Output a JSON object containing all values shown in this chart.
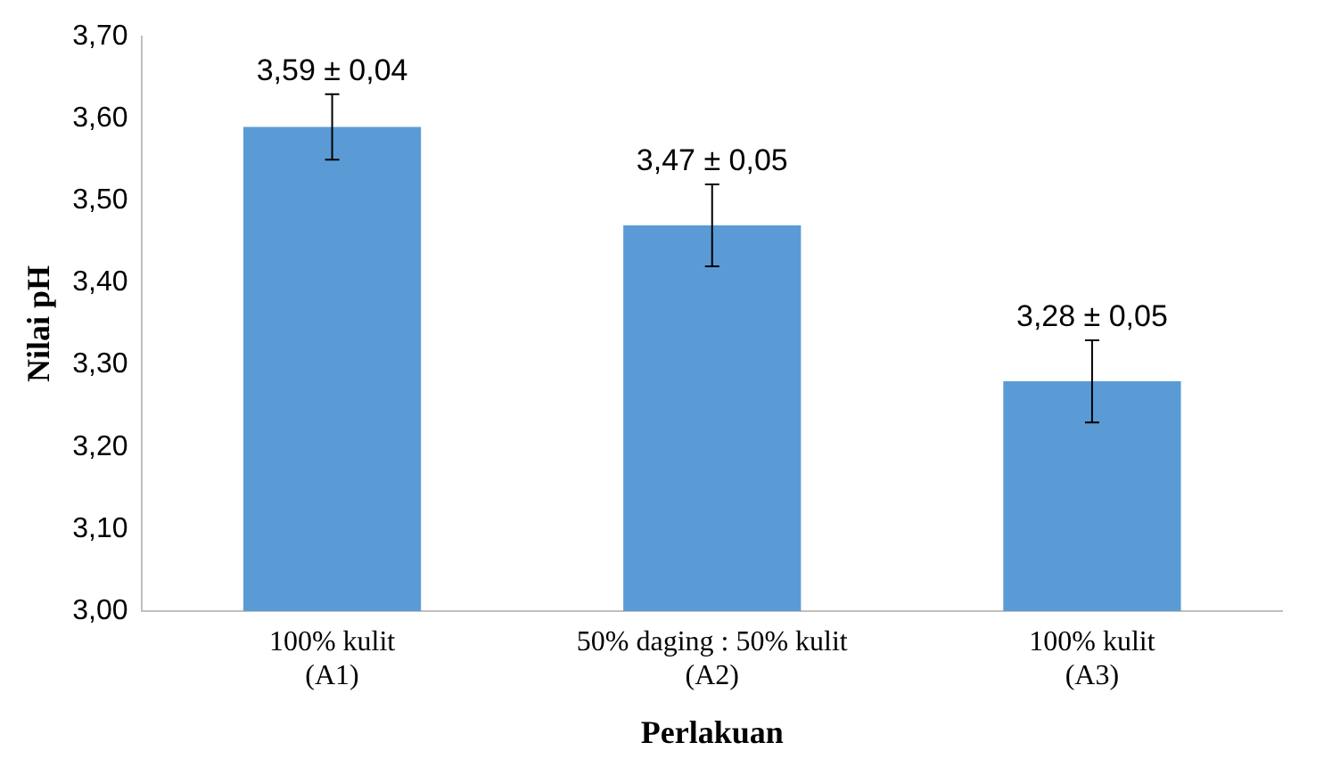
{
  "chart_data": {
    "type": "bar",
    "xlabel": "Perlakuan",
    "ylabel": "Nilai pH",
    "categories": [
      "100% kulit (A1)",
      "50% daging : 50% kulit (A2)",
      "100% kulit (A3)"
    ],
    "values": [
      3.59,
      3.47,
      3.28
    ],
    "errors": [
      0.04,
      0.05,
      0.05
    ],
    "value_labels": [
      "3,59 ± 0,04",
      "3,47 ± 0,05",
      "3,28 ± 0,05"
    ],
    "color": "#5b9bd5",
    "ylim": [
      3.0,
      3.7
    ],
    "yticks": [
      {
        "value": 3.0,
        "label": "3,00"
      },
      {
        "value": 3.1,
        "label": "3,10"
      },
      {
        "value": 3.2,
        "label": "3,20"
      },
      {
        "value": 3.3,
        "label": "3,30"
      },
      {
        "value": 3.4,
        "label": "3,40"
      },
      {
        "value": 3.5,
        "label": "3,50"
      },
      {
        "value": 3.6,
        "label": "3,60"
      },
      {
        "value": 3.7,
        "label": "3,70"
      }
    ],
    "grid": false,
    "legend": false
  }
}
